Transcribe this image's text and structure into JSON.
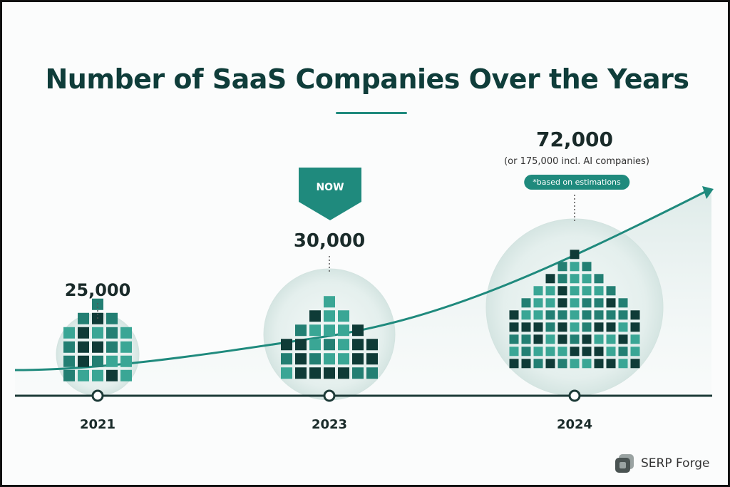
{
  "title": "Number of SaaS Companies Over the Years",
  "colors": {
    "teal": "#1f8a7d",
    "dark": "#0f3d3a",
    "square_dark": "#0f3b37",
    "square_mid": "#237f73",
    "square_light": "#3aa695",
    "circle_fill": "#e9f1f0",
    "axis": "#1c3a37"
  },
  "now_badge": "NOW",
  "note_72k": "(or 175,000 incl. AI companies)",
  "estimation_pill": "*based on estimations",
  "brand": {
    "name": "SERP Forge",
    "icon": "serp-forge-logo-icon"
  },
  "chart_data": {
    "type": "bar",
    "title": "Number of SaaS Companies Over the Years",
    "categories": [
      "2021",
      "2023",
      "2024"
    ],
    "values": [
      25000,
      30000,
      72000
    ],
    "value_labels": [
      "25,000",
      "30,000",
      "72,000"
    ],
    "xlabel": "",
    "ylabel": "",
    "grid": false,
    "legend": "none"
  }
}
